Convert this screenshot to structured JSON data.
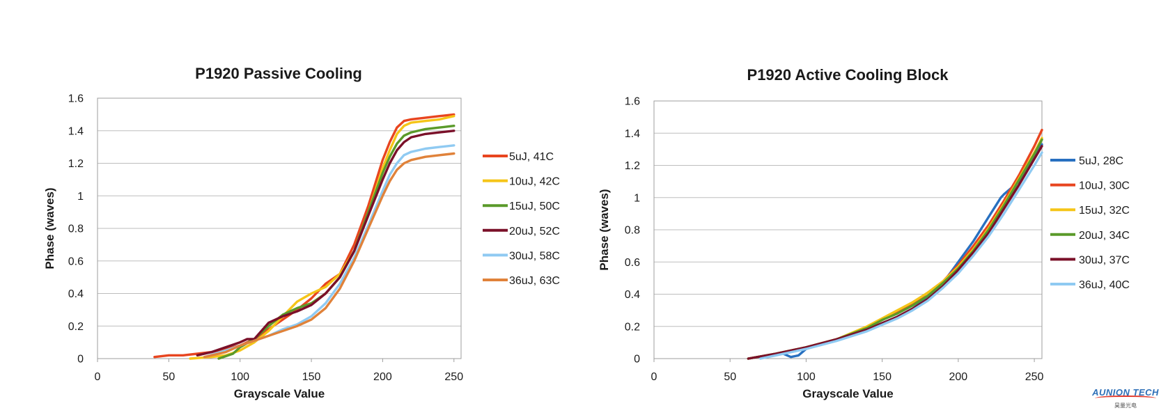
{
  "chart_data": [
    {
      "type": "line",
      "title": "P1920 Passive Cooling",
      "xlabel": "Grayscale Value",
      "ylabel": "Phase (waves)",
      "xlim": [
        0,
        255
      ],
      "ylim": [
        0,
        1.6
      ],
      "xticks": [
        "0",
        "50",
        "100",
        "150",
        "200",
        "250"
      ],
      "yticks": [
        "0",
        "0.2",
        "0.4",
        "0.6",
        "0.8",
        "1",
        "1.2",
        "1.4",
        "1.6"
      ],
      "grid": true,
      "legend": "right",
      "series": [
        {
          "name": "5uJ, 41C",
          "color": "#e8451f",
          "x": [
            40,
            50,
            60,
            70,
            80,
            90,
            100,
            110,
            120,
            130,
            140,
            150,
            160,
            170,
            180,
            190,
            200,
            205,
            210,
            215,
            220,
            230,
            240,
            250
          ],
          "y": [
            0.01,
            0.02,
            0.02,
            0.03,
            0.04,
            0.06,
            0.08,
            0.12,
            0.18,
            0.24,
            0.3,
            0.37,
            0.46,
            0.52,
            0.7,
            0.94,
            1.22,
            1.33,
            1.42,
            1.46,
            1.47,
            1.48,
            1.49,
            1.5
          ]
        },
        {
          "name": "10uJ, 42C",
          "color": "#f5c518",
          "x": [
            65,
            80,
            90,
            100,
            110,
            120,
            130,
            140,
            150,
            160,
            170,
            180,
            190,
            200,
            205,
            210,
            215,
            220,
            230,
            240,
            250
          ],
          "y": [
            0.0,
            0.01,
            0.02,
            0.05,
            0.1,
            0.17,
            0.26,
            0.35,
            0.4,
            0.44,
            0.52,
            0.66,
            0.9,
            1.17,
            1.28,
            1.38,
            1.43,
            1.45,
            1.46,
            1.47,
            1.49
          ]
        },
        {
          "name": "15uJ, 50C",
          "color": "#5a9a2a",
          "x": [
            85,
            95,
            100,
            110,
            120,
            130,
            140,
            150,
            160,
            170,
            180,
            190,
            200,
            205,
            210,
            215,
            220,
            230,
            240,
            250
          ],
          "y": [
            0.0,
            0.03,
            0.07,
            0.12,
            0.2,
            0.27,
            0.31,
            0.34,
            0.4,
            0.5,
            0.66,
            0.9,
            1.14,
            1.24,
            1.32,
            1.37,
            1.39,
            1.41,
            1.42,
            1.43
          ]
        },
        {
          "name": "20uJ, 52C",
          "color": "#7a1029",
          "x": [
            70,
            80,
            90,
            100,
            105,
            110,
            120,
            130,
            140,
            150,
            160,
            170,
            180,
            190,
            200,
            205,
            210,
            215,
            220,
            230,
            240,
            250
          ],
          "y": [
            0.02,
            0.04,
            0.07,
            0.1,
            0.12,
            0.12,
            0.22,
            0.26,
            0.29,
            0.33,
            0.4,
            0.5,
            0.66,
            0.88,
            1.1,
            1.2,
            1.28,
            1.33,
            1.36,
            1.38,
            1.39,
            1.4
          ]
        },
        {
          "name": "30uJ, 58C",
          "color": "#8fcaf2",
          "x": [
            75,
            90,
            100,
            110,
            120,
            130,
            140,
            150,
            160,
            170,
            180,
            190,
            200,
            205,
            210,
            215,
            220,
            230,
            240,
            250
          ],
          "y": [
            0.01,
            0.05,
            0.08,
            0.11,
            0.14,
            0.18,
            0.21,
            0.26,
            0.34,
            0.46,
            0.62,
            0.82,
            1.03,
            1.13,
            1.2,
            1.25,
            1.27,
            1.29,
            1.3,
            1.31
          ]
        },
        {
          "name": "36uJ, 63C",
          "color": "#e0823a",
          "x": [
            75,
            90,
            100,
            110,
            120,
            130,
            140,
            150,
            160,
            170,
            180,
            190,
            200,
            205,
            210,
            215,
            220,
            230,
            240,
            250
          ],
          "y": [
            0.01,
            0.04,
            0.08,
            0.11,
            0.14,
            0.17,
            0.2,
            0.24,
            0.31,
            0.43,
            0.6,
            0.8,
            1.0,
            1.09,
            1.16,
            1.2,
            1.22,
            1.24,
            1.25,
            1.26
          ]
        }
      ]
    },
    {
      "type": "line",
      "title": "P1920 Active Cooling Block",
      "xlabel": "Grayscale Value",
      "ylabel": "Phase (waves)",
      "xlim": [
        0,
        255
      ],
      "ylim": [
        0,
        1.6
      ],
      "xticks": [
        "0",
        "50",
        "100",
        "150",
        "200",
        "250"
      ],
      "yticks": [
        "0",
        "0.2",
        "0.4",
        "0.6",
        "0.8",
        "1",
        "1.2",
        "1.4",
        "1.6"
      ],
      "grid": true,
      "legend": "right",
      "series": [
        {
          "name": "5uJ, 28C",
          "color": "#2870c0",
          "x": [
            62,
            75,
            85,
            90,
            95,
            100,
            110,
            120,
            130,
            140,
            150,
            160,
            170,
            180,
            190,
            200,
            210,
            220,
            228,
            230,
            240,
            250,
            255
          ],
          "y": [
            0.0,
            0.02,
            0.03,
            0.01,
            0.02,
            0.06,
            0.09,
            0.12,
            0.15,
            0.18,
            0.22,
            0.26,
            0.31,
            0.38,
            0.47,
            0.6,
            0.73,
            0.88,
            1.0,
            1.02,
            1.1,
            1.25,
            1.33
          ]
        },
        {
          "name": "10uJ, 30C",
          "color": "#e8451f",
          "x": [
            62,
            80,
            100,
            120,
            140,
            150,
            160,
            170,
            180,
            190,
            200,
            210,
            220,
            230,
            240,
            250,
            255
          ],
          "y": [
            0.0,
            0.03,
            0.07,
            0.12,
            0.19,
            0.24,
            0.29,
            0.34,
            0.41,
            0.48,
            0.58,
            0.7,
            0.83,
            0.98,
            1.14,
            1.32,
            1.42
          ]
        },
        {
          "name": "15uJ, 32C",
          "color": "#f5c518",
          "x": [
            62,
            80,
            100,
            120,
            140,
            150,
            160,
            170,
            180,
            190,
            200,
            210,
            220,
            230,
            240,
            250,
            255
          ],
          "y": [
            0.0,
            0.03,
            0.07,
            0.12,
            0.2,
            0.25,
            0.3,
            0.35,
            0.41,
            0.48,
            0.57,
            0.68,
            0.81,
            0.96,
            1.12,
            1.28,
            1.37
          ]
        },
        {
          "name": "20uJ, 34C",
          "color": "#5a9a2a",
          "x": [
            62,
            80,
            100,
            120,
            140,
            150,
            160,
            170,
            180,
            190,
            200,
            210,
            220,
            230,
            240,
            250,
            255
          ],
          "y": [
            0.0,
            0.03,
            0.07,
            0.12,
            0.19,
            0.24,
            0.28,
            0.33,
            0.39,
            0.47,
            0.56,
            0.67,
            0.8,
            0.95,
            1.11,
            1.27,
            1.36
          ]
        },
        {
          "name": "30uJ, 37C",
          "color": "#7a1029",
          "x": [
            62,
            80,
            100,
            120,
            140,
            150,
            160,
            170,
            180,
            190,
            200,
            210,
            220,
            230,
            240,
            250,
            255
          ],
          "y": [
            0.0,
            0.03,
            0.07,
            0.12,
            0.18,
            0.22,
            0.26,
            0.31,
            0.37,
            0.45,
            0.55,
            0.66,
            0.78,
            0.93,
            1.08,
            1.24,
            1.32
          ]
        },
        {
          "name": "36uJ, 40C",
          "color": "#8fcaf2",
          "x": [
            70,
            80,
            100,
            120,
            140,
            150,
            160,
            170,
            180,
            190,
            200,
            210,
            220,
            230,
            240,
            250,
            255
          ],
          "y": [
            0.0,
            0.02,
            0.06,
            0.11,
            0.17,
            0.21,
            0.25,
            0.3,
            0.36,
            0.44,
            0.53,
            0.64,
            0.76,
            0.9,
            1.05,
            1.2,
            1.28
          ]
        }
      ]
    }
  ],
  "logo": {
    "brand": "AUNION TECH",
    "sub": "昊量光电"
  }
}
